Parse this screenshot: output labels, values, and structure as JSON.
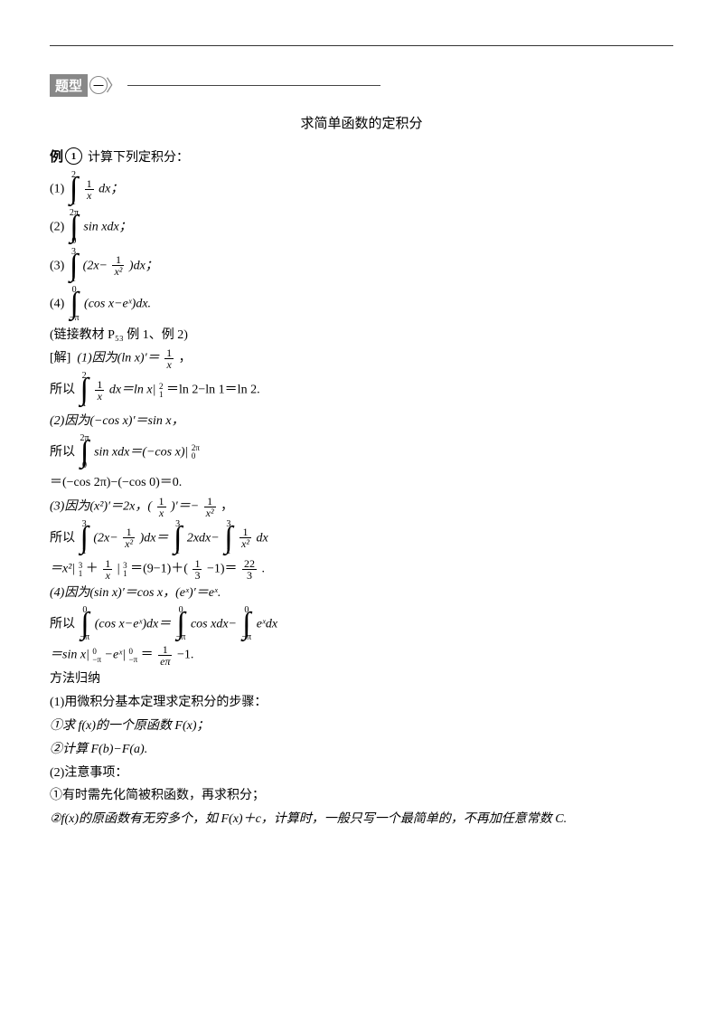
{
  "header": {
    "badge": "题型",
    "circle": "一"
  },
  "title": "求简单函数的定积分",
  "example": {
    "label": "例",
    "num": "1",
    "prompt": "计算下列定积分："
  },
  "items": {
    "i1_pre": "(1)",
    "i1_int_top": "2",
    "i1_int_bot": "1",
    "i1_frac_n": "1",
    "i1_frac_d": "x",
    "i1_post": "dx；",
    "i2_pre": "(2)",
    "i2_int_top": "2π",
    "i2_int_bot": "0",
    "i2_post": "sin xdx；",
    "i3_pre": "(3)",
    "i3_int_top": "3",
    "i3_int_bot": "1",
    "i3_mid": "(2x−",
    "i3_frac_n": "1",
    "i3_frac_d": "x²",
    "i3_post": ")dx；",
    "i4_pre": "(4)",
    "i4_int_top": "0",
    "i4_int_bot": "−π",
    "i4_post": "(cos x−eˣ)dx."
  },
  "link": "(链接教材 P₅₃ 例 1、例 2)",
  "solution": {
    "label": "[解]",
    "s1a": "(1)因为(ln x)′＝",
    "s1a_n": "1",
    "s1a_d": "x",
    "s1a_end": "，",
    "s1b_pre": "所以",
    "s1b_n": "1",
    "s1b_d": "x",
    "s1b_post": "dx＝ln x|",
    "s1b_stack_top": "2",
    "s1b_stack_bot": "1",
    "s1b_end": "＝ln 2−ln 1＝ln 2.",
    "s2a": "(2)因为(−cos x)′＝sin x，",
    "s2b_pre": "所以",
    "s2b_post": "sin xdx＝(−cos x)|",
    "s2b_stack_top": "2π",
    "s2b_stack_bot": "0",
    "s2c": "＝(−cos 2π)−(−cos 0)＝0.",
    "s3a_pre": "(3)因为(x²)′＝2x，(",
    "s3a_n1": "1",
    "s3a_d1": "x",
    "s3a_mid": ")′＝−",
    "s3a_n2": "1",
    "s3a_d2": "x²",
    "s3a_end": "，",
    "s3b_pre": "所以",
    "s3b_mid1": "(2x−",
    "s3b_n1": "1",
    "s3b_d1": "x²",
    "s3b_mid2": ")dx＝",
    "s3b_mid3": "2xdx−",
    "s3b_n2": "1",
    "s3b_d2": "x²",
    "s3b_end": "dx",
    "s3c_pre": "＝x²|",
    "s3c_st1t": "3",
    "s3c_st1b": "1",
    "s3c_mid1": "＋",
    "s3c_n1": "1",
    "s3c_d1": "x",
    "s3c_mid2": "|",
    "s3c_st2t": "3",
    "s3c_st2b": "1",
    "s3c_mid3": "＝(9−1)＋(",
    "s3c_n2": "1",
    "s3c_d2": "3",
    "s3c_mid4": "−1)＝",
    "s3c_n3": "22",
    "s3c_d3": "3",
    "s3c_end": ".",
    "s4a": "(4)因为(sin x)′＝cos x，(eˣ)′＝eˣ.",
    "s4b_pre": "所以",
    "s4b_mid1": "(cos x−eˣ)dx＝",
    "s4b_mid2": "cos xdx−",
    "s4b_mid3": "eˣdx",
    "s4c_pre": "＝sin x|",
    "s4c_st1t": "0",
    "s4c_st1b": "−π",
    "s4c_mid1": "−eˣ|",
    "s4c_st2t": "0",
    "s4c_st2b": "−π",
    "s4c_mid2": "＝",
    "s4c_n": "1",
    "s4c_d": "eπ",
    "s4c_end": "−1."
  },
  "method": {
    "title": "方法归纳",
    "m1": "(1)用微积分基本定理求定积分的步骤：",
    "m1a": "①求 f(x)的一个原函数 F(x)；",
    "m1b": "②计算 F(b)−F(a).",
    "m2": "(2)注意事项：",
    "m2a": "①有时需先化简被积函数，再求积分；",
    "m2b": "②f(x)的原函数有无穷多个，如 F(x)＋c，计算时，一般只写一个最简单的，不再加任意常数 C."
  }
}
